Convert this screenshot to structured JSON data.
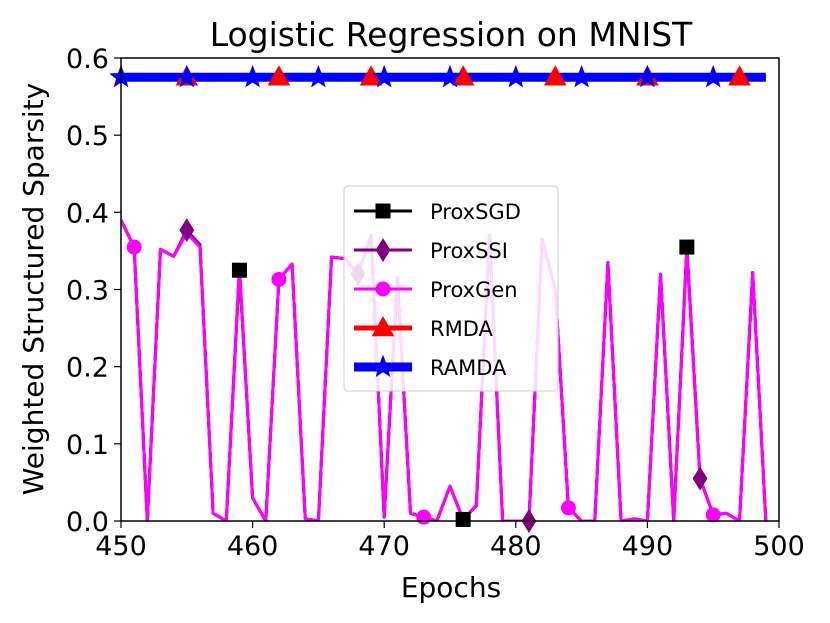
{
  "chart_data": {
    "type": "line",
    "title": "Logistic Regression on MNIST",
    "xlabel": "Epochs",
    "ylabel": "Weighted Structured Sparsity",
    "xlim": [
      450,
      500
    ],
    "ylim": [
      0.0,
      0.6
    ],
    "xticks": [
      "450",
      "460",
      "470",
      "480",
      "490",
      "500"
    ],
    "yticks": [
      "0.0",
      "0.1",
      "0.2",
      "0.3",
      "0.4",
      "0.5",
      "0.6"
    ],
    "legend_position": "center",
    "x": [
      450,
      451,
      452,
      453,
      454,
      455,
      456,
      457,
      458,
      459,
      460,
      461,
      462,
      463,
      464,
      465,
      466,
      467,
      468,
      469,
      470,
      471,
      472,
      473,
      474,
      475,
      476,
      477,
      478,
      479,
      480,
      481,
      482,
      483,
      484,
      485,
      486,
      487,
      488,
      489,
      490,
      491,
      492,
      493,
      494,
      495,
      496,
      497,
      498,
      499
    ],
    "series": [
      {
        "name": "ProxSGD",
        "color": "#000000",
        "marker": "square",
        "marker_x": [
          459,
          476,
          493
        ],
        "values": [
          0.39,
          0.355,
          0.0,
          0.352,
          0.343,
          0.375,
          0.358,
          0.01,
          0.0,
          0.325,
          0.03,
          0.0,
          0.313,
          0.333,
          0.003,
          0.0,
          0.342,
          0.34,
          0.32,
          0.37,
          0.005,
          0.316,
          0.01,
          0.005,
          0.0,
          0.045,
          0.002,
          0.02,
          0.37,
          0.0,
          0.0,
          0.0,
          0.365,
          0.3,
          0.017,
          0.0,
          0.0,
          0.335,
          0.0,
          0.0,
          0.0,
          0.32,
          0.0,
          0.355,
          0.055,
          0.008,
          0.01,
          0.0,
          0.322,
          0.0
        ]
      },
      {
        "name": "ProxSSI",
        "color": "#800080",
        "marker": "thin_diamond",
        "marker_x": [
          455,
          468,
          481,
          494
        ],
        "values": [
          0.39,
          0.355,
          0.0,
          0.352,
          0.343,
          0.377,
          0.358,
          0.01,
          0.0,
          0.325,
          0.03,
          0.0,
          0.313,
          0.333,
          0.003,
          0.0,
          0.342,
          0.34,
          0.32,
          0.37,
          0.005,
          0.316,
          0.01,
          0.005,
          0.0,
          0.045,
          0.002,
          0.02,
          0.37,
          0.0,
          0.0,
          0.0,
          0.365,
          0.3,
          0.017,
          0.0,
          0.0,
          0.335,
          0.0,
          0.0,
          0.0,
          0.32,
          0.0,
          0.355,
          0.055,
          0.008,
          0.01,
          0.0,
          0.322,
          0.0
        ]
      },
      {
        "name": "ProxGen",
        "color": "#ff00ff",
        "marker": "circle",
        "marker_x": [
          451,
          462,
          473,
          484,
          495
        ],
        "values": [
          0.39,
          0.355,
          0.0,
          0.352,
          0.343,
          0.373,
          0.355,
          0.01,
          0.0,
          0.33,
          0.03,
          0.0,
          0.313,
          0.333,
          0.003,
          0.0,
          0.342,
          0.34,
          0.32,
          0.37,
          0.005,
          0.316,
          0.01,
          0.005,
          0.0,
          0.045,
          0.002,
          0.02,
          0.37,
          0.0,
          0.0,
          0.0,
          0.365,
          0.3,
          0.017,
          0.0,
          0.0,
          0.335,
          0.0,
          0.003,
          0.0,
          0.32,
          0.0,
          0.35,
          0.055,
          0.008,
          0.01,
          0.0,
          0.322,
          0.0
        ]
      },
      {
        "name": "RMDA",
        "color": "#ff0000",
        "marker": "triangle",
        "marker_x": [
          455,
          462,
          469,
          476,
          483,
          490,
          497
        ],
        "values": [
          0.575,
          0.575,
          0.575,
          0.575,
          0.575,
          0.575,
          0.575,
          0.575,
          0.575,
          0.575,
          0.575,
          0.575,
          0.575,
          0.575,
          0.575,
          0.575,
          0.575,
          0.575,
          0.575,
          0.575,
          0.575,
          0.575,
          0.575,
          0.575,
          0.575,
          0.575,
          0.575,
          0.575,
          0.575,
          0.575,
          0.575,
          0.575,
          0.575,
          0.575,
          0.575,
          0.575,
          0.575,
          0.575,
          0.575,
          0.575,
          0.575,
          0.575,
          0.575,
          0.575,
          0.575,
          0.575,
          0.575,
          0.575,
          0.575,
          0.575
        ]
      },
      {
        "name": "RAMDA",
        "color": "#0000ff",
        "marker": "star",
        "marker_x": [
          450,
          455,
          460,
          465,
          470,
          475,
          480,
          485,
          490,
          495
        ],
        "values": [
          0.575,
          0.575,
          0.575,
          0.575,
          0.575,
          0.575,
          0.575,
          0.575,
          0.575,
          0.575,
          0.575,
          0.575,
          0.575,
          0.575,
          0.575,
          0.575,
          0.575,
          0.575,
          0.575,
          0.575,
          0.575,
          0.575,
          0.575,
          0.575,
          0.575,
          0.575,
          0.575,
          0.575,
          0.575,
          0.575,
          0.575,
          0.575,
          0.575,
          0.575,
          0.575,
          0.575,
          0.575,
          0.575,
          0.575,
          0.575,
          0.575,
          0.575,
          0.575,
          0.575,
          0.575,
          0.575,
          0.575,
          0.575,
          0.575,
          0.575
        ]
      }
    ]
  }
}
